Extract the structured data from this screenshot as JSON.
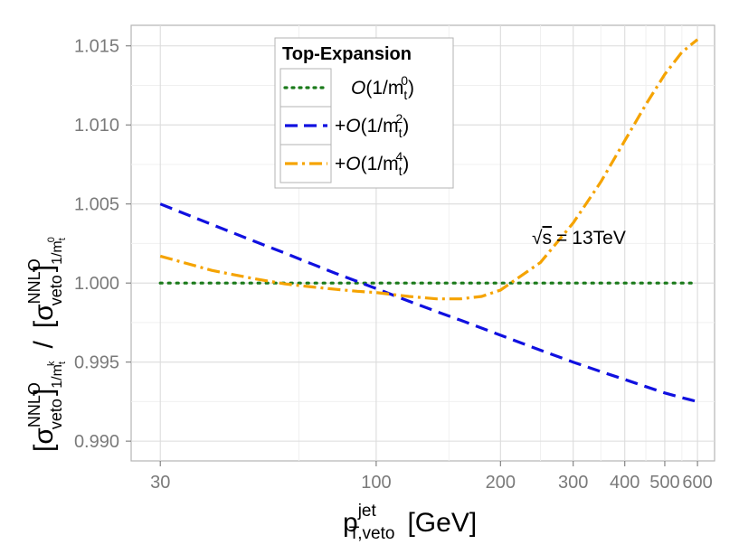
{
  "chart_data": {
    "type": "line",
    "title": "",
    "xlabel": "p_T,veto^jet [GeV]",
    "xlabel_parts": {
      "base": "p",
      "sup": "jet",
      "sub": "T,veto",
      "unit": "[GeV]"
    },
    "ylabel": "[σ_veto^NNLO]_1/m_t^k / [σ_veto^NNLO]_1/m_t^0",
    "ylabel_parts": {
      "sigma": "σ",
      "sup": "NNLO",
      "sub": "veto",
      "sep": "/",
      "lb": "[",
      "rb": "]",
      "m": "m",
      "t": "t",
      "k": "k",
      "zero": "0",
      "one": "1/"
    },
    "x_scale": "log",
    "xlim": [
      25.5,
      660
    ],
    "ylim": [
      0.98875,
      1.0163
    ],
    "xticks": [
      30,
      100,
      200,
      300,
      400,
      500,
      600
    ],
    "xtick_labels": [
      "30",
      "100",
      "200",
      "300",
      "400",
      "500",
      "600"
    ],
    "yticks": [
      0.99,
      0.995,
      1.0,
      1.005,
      1.01,
      1.015
    ],
    "ytick_labels": [
      "0.990",
      "0.995",
      "1.000",
      "1.005",
      "1.010",
      "1.015"
    ],
    "grid": true,
    "legend_position": "top-left",
    "legend_title": "Top-Expansion",
    "annotation": {
      "text": "√s = 13TeV",
      "parts": {
        "root": "√",
        "s": "s",
        "eq": "=",
        "val": "13TeV"
      },
      "x": 500,
      "y": 1.0029
    },
    "x": [
      30,
      40,
      50,
      60,
      70,
      80,
      90,
      100,
      120,
      140,
      160,
      180,
      200,
      250,
      300,
      350,
      400,
      450,
      500,
      550,
      600
    ],
    "series": [
      {
        "name": "O(1/m_t^0)",
        "label_parts": {
          "prefix": "",
          "O": "O",
          "open": "(1/m",
          "sub": "t",
          "sup": "0",
          "close": ")"
        },
        "color": "#1a7a1a",
        "dash": "dotted",
        "values": [
          1.0,
          1.0,
          1.0,
          1.0,
          1.0,
          1.0,
          1.0,
          1.0,
          1.0,
          1.0,
          1.0,
          1.0,
          1.0,
          1.0,
          1.0,
          1.0,
          1.0,
          1.0,
          1.0,
          1.0,
          1.0
        ]
      },
      {
        "name": "+O(1/m_t^2)",
        "label_parts": {
          "prefix": "+",
          "O": "O",
          "open": "(1/m",
          "sub": "t",
          "sup": "2",
          "close": ")"
        },
        "color": "#1010e0",
        "dash": "dashed",
        "values": [
          1.005,
          1.0037,
          1.0027,
          1.0019,
          1.0012,
          1.0006,
          1.0001,
          0.99965,
          0.99885,
          0.9982,
          0.99765,
          0.99715,
          0.9967,
          0.99575,
          0.995,
          0.9944,
          0.9939,
          0.99345,
          0.99305,
          0.99275,
          0.9925
        ]
      },
      {
        "name": "+O(1/m_t^4)",
        "label_parts": {
          "prefix": "+",
          "O": "O",
          "open": "(1/m",
          "sub": "t",
          "sup": "4",
          "close": ")"
        },
        "color": "#f5a300",
        "dash": "dashdot",
        "values": [
          1.0017,
          1.0008,
          1.0003,
          0.99995,
          0.99975,
          0.9996,
          0.99948,
          0.9994,
          0.99915,
          0.999,
          0.999,
          0.99915,
          0.99955,
          1.0013,
          1.0038,
          1.0064,
          1.009,
          1.0113,
          1.0132,
          1.0146,
          1.0154
        ]
      }
    ]
  }
}
